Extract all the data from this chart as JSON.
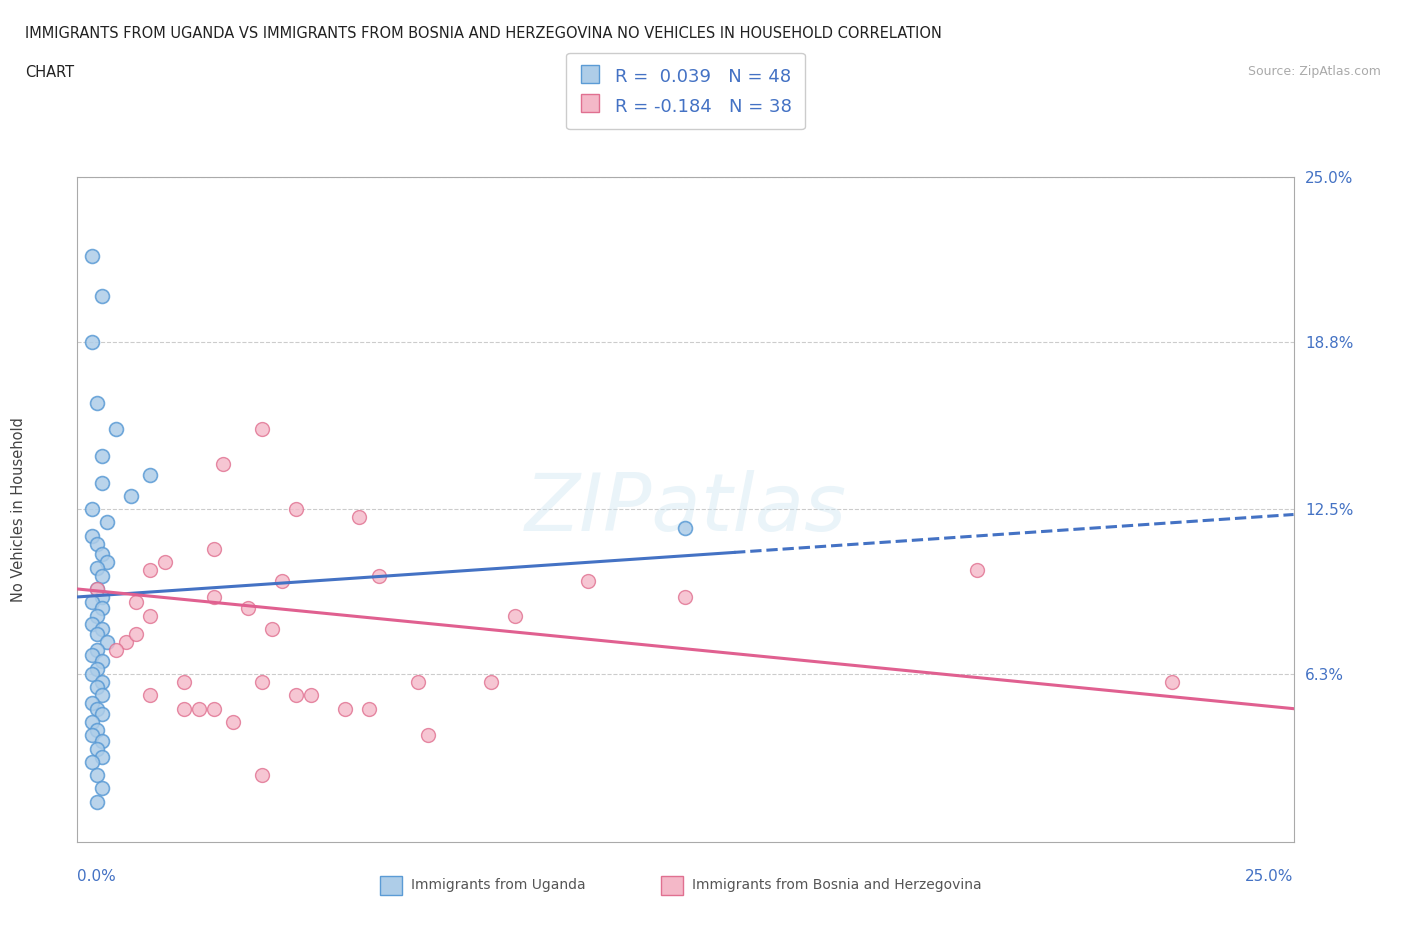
{
  "title_line1": "IMMIGRANTS FROM UGANDA VS IMMIGRANTS FROM BOSNIA AND HERZEGOVINA NO VEHICLES IN HOUSEHOLD CORRELATION",
  "title_line2": "CHART",
  "source": "Source: ZipAtlas.com",
  "xmin": 0.0,
  "xmax": 25.0,
  "ymin": 0.0,
  "ymax": 25.0,
  "ytick_vals": [
    6.3,
    12.5,
    18.8,
    25.0
  ],
  "R1": 0.039,
  "N1": 48,
  "R2": -0.184,
  "N2": 38,
  "legend_label1": "Immigrants from Uganda",
  "legend_label2": "Immigrants from Bosnia and Herzegovina",
  "ylabel": "No Vehicles in Household",
  "watermark": "ZIPatlas",
  "color1_face": "#aecde8",
  "color1_edge": "#5b9bd5",
  "color2_face": "#f4b8c8",
  "color2_edge": "#e07090",
  "line1_color": "#4472c4",
  "line2_color": "#e06090",
  "bg_color": "#ffffff",
  "grid_color": "#cccccc",
  "series1_x": [
    0.3,
    0.5,
    0.3,
    0.4,
    0.8,
    0.5,
    1.5,
    0.5,
    1.1,
    0.3,
    0.6,
    0.3,
    0.4,
    0.5,
    0.6,
    0.4,
    0.5,
    0.4,
    0.5,
    0.3,
    0.5,
    0.4,
    0.3,
    0.5,
    0.4,
    0.6,
    0.4,
    0.3,
    0.5,
    0.4,
    0.3,
    0.5,
    0.4,
    0.5,
    0.3,
    0.4,
    0.5,
    0.3,
    0.4,
    0.3,
    0.5,
    0.4,
    0.5,
    0.3,
    0.4,
    0.5,
    12.5,
    0.4
  ],
  "series1_y": [
    22.0,
    20.5,
    18.8,
    16.5,
    15.5,
    14.5,
    13.8,
    13.5,
    13.0,
    12.5,
    12.0,
    11.5,
    11.2,
    10.8,
    10.5,
    10.3,
    10.0,
    9.5,
    9.2,
    9.0,
    8.8,
    8.5,
    8.2,
    8.0,
    7.8,
    7.5,
    7.2,
    7.0,
    6.8,
    6.5,
    6.3,
    6.0,
    5.8,
    5.5,
    5.2,
    5.0,
    4.8,
    4.5,
    4.2,
    4.0,
    3.8,
    3.5,
    3.2,
    3.0,
    2.5,
    2.0,
    11.8,
    1.5
  ],
  "series2_x": [
    0.4,
    1.5,
    3.8,
    3.0,
    1.8,
    1.2,
    2.8,
    4.2,
    1.0,
    1.5,
    4.0,
    4.5,
    0.8,
    1.2,
    5.8,
    6.2,
    2.8,
    2.2,
    3.5,
    8.5,
    9.0,
    10.5,
    12.5,
    18.5,
    7.0,
    2.5,
    3.8,
    4.5,
    5.5,
    22.5,
    2.2,
    3.2,
    4.8,
    6.0,
    7.2,
    1.5,
    2.8,
    3.8
  ],
  "series2_y": [
    9.5,
    10.2,
    15.5,
    14.2,
    10.5,
    9.0,
    11.0,
    9.8,
    7.5,
    8.5,
    8.0,
    12.5,
    7.2,
    7.8,
    12.2,
    10.0,
    9.2,
    6.0,
    8.8,
    6.0,
    8.5,
    9.8,
    9.2,
    10.2,
    6.0,
    5.0,
    6.0,
    5.5,
    5.0,
    6.0,
    5.0,
    4.5,
    5.5,
    5.0,
    4.0,
    5.5,
    5.0,
    2.5
  ]
}
